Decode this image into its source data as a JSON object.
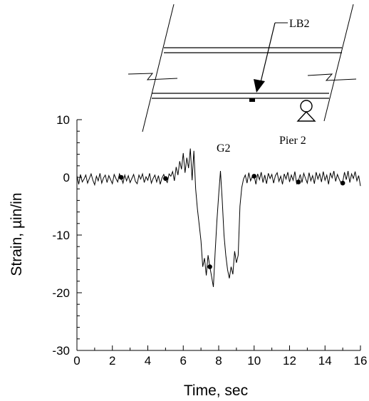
{
  "chart_data": {
    "type": "line",
    "xlabel": "Time, sec",
    "ylabel": "Strain, µin/in",
    "xlim": [
      0,
      16
    ],
    "ylim": [
      -30,
      10
    ],
    "x_major_ticks": [
      0,
      2,
      4,
      6,
      8,
      10,
      12,
      14,
      16
    ],
    "y_major_ticks": [
      -30,
      -20,
      -10,
      0,
      10
    ],
    "grid": false,
    "series": [
      {
        "x": [
          0.0,
          0.1,
          0.2,
          0.3,
          0.4,
          0.5,
          0.6,
          0.7,
          0.8,
          0.9,
          1.0,
          1.1,
          1.2,
          1.3,
          1.4,
          1.5,
          1.6,
          1.7,
          1.8,
          1.9,
          2.0,
          2.1,
          2.2,
          2.3,
          2.4,
          2.5,
          2.6,
          2.7,
          2.8,
          2.9,
          3.0,
          3.1,
          3.2,
          3.3,
          3.4,
          3.5,
          3.6,
          3.7,
          3.8,
          3.9,
          4.0,
          4.1,
          4.2,
          4.3,
          4.4,
          4.5,
          4.6,
          4.7,
          4.8,
          4.9,
          5.0,
          5.1,
          5.2,
          5.3,
          5.4,
          5.5,
          5.6,
          5.7,
          5.8,
          5.9,
          6.0,
          6.1,
          6.2,
          6.3,
          6.4,
          6.5,
          6.6,
          6.7,
          6.8,
          6.9,
          7.0,
          7.1,
          7.2,
          7.3,
          7.4,
          7.5,
          7.6,
          7.7,
          7.8,
          7.9,
          8.0,
          8.1,
          8.2,
          8.3,
          8.4,
          8.5,
          8.6,
          8.7,
          8.8,
          8.9,
          9.0,
          9.1,
          9.2,
          9.3,
          9.4,
          9.5,
          9.6,
          9.7,
          9.8,
          9.9,
          10.0,
          10.1,
          10.2,
          10.3,
          10.4,
          10.5,
          10.6,
          10.7,
          10.8,
          10.9,
          11.0,
          11.1,
          11.2,
          11.3,
          11.4,
          11.5,
          11.6,
          11.7,
          11.8,
          11.9,
          12.0,
          12.1,
          12.2,
          12.3,
          12.4,
          12.5,
          12.6,
          12.7,
          12.8,
          12.9,
          13.0,
          13.1,
          13.2,
          13.3,
          13.4,
          13.5,
          13.6,
          13.7,
          13.8,
          13.9,
          14.0,
          14.1,
          14.2,
          14.3,
          14.4,
          14.5,
          14.6,
          14.7,
          14.8,
          14.9,
          15.0,
          15.1,
          15.2,
          15.3,
          15.4,
          15.5,
          15.6,
          15.7,
          15.8,
          15.9,
          16.0
        ],
        "y": [
          0.3,
          -1.2,
          0.5,
          -0.8,
          -0.3,
          0.4,
          -1.0,
          -0.2,
          0.6,
          -0.5,
          -1.3,
          0.2,
          -0.6,
          0.7,
          -1.0,
          -0.1,
          0.4,
          -0.9,
          0.3,
          -0.4,
          -1.1,
          0.5,
          -0.2,
          -0.8,
          0.6,
          -0.1,
          -1.0,
          0.4,
          -0.6,
          0.3,
          -0.9,
          -0.2,
          0.5,
          -0.7,
          -1.1,
          0.4,
          -0.3,
          0.6,
          -0.9,
          0.1,
          -0.5,
          0.7,
          -1.0,
          -0.2,
          0.4,
          -0.8,
          0.3,
          -1.2,
          -0.1,
          0.5,
          -0.4,
          -0.9,
          0.6,
          0.2,
          1.0,
          -0.6,
          1.8,
          0.4,
          2.8,
          1.4,
          4.2,
          0.8,
          3.4,
          1.6,
          5.0,
          -0.5,
          4.6,
          -2.0,
          -5.5,
          -8.2,
          -11.0,
          -15.5,
          -14.0,
          -17.0,
          -13.5,
          -15.5,
          -17.2,
          -19.0,
          -13.0,
          -7.5,
          -3.0,
          1.1,
          -4.0,
          -10.0,
          -13.5,
          -16.0,
          -17.5,
          -15.5,
          -16.8,
          -12.8,
          -14.8,
          -13.5,
          -5.0,
          -1.8,
          -0.3,
          0.4,
          -1.0,
          0.8,
          -0.6,
          0.2,
          0.3,
          -1.2,
          0.6,
          -0.4,
          0.9,
          -0.9,
          0.4,
          -1.1,
          0.7,
          -0.2,
          0.5,
          -1.0,
          0.3,
          0.8,
          -0.7,
          0.2,
          -1.2,
          0.6,
          -0.3,
          0.9,
          -0.8,
          0.4,
          -0.5,
          1.0,
          -1.1,
          -0.6,
          0.5,
          -0.9,
          0.7,
          -0.2,
          -1.0,
          0.8,
          -0.6,
          0.3,
          -1.1,
          0.9,
          -0.3,
          0.6,
          -0.8,
          1.0,
          -0.5,
          0.4,
          -1.2,
          0.8,
          -0.1,
          1.1,
          -0.7,
          0.5,
          -0.3,
          -1.0,
          -0.8,
          0.9,
          -0.4,
          1.1,
          -0.9,
          0.6,
          -0.2,
          1.0,
          -0.6,
          0.3,
          -1.5
        ]
      }
    ],
    "markers": {
      "x": [
        2.5,
        5.0,
        7.5,
        10.0,
        12.5,
        15.0
      ],
      "y": [
        0.0,
        -0.2,
        -15.5,
        0.2,
        -0.8,
        -1.0
      ]
    }
  },
  "schematic": {
    "gauge_label": "LB2",
    "girder_label": "G2",
    "pier_label": "Pier 2"
  }
}
